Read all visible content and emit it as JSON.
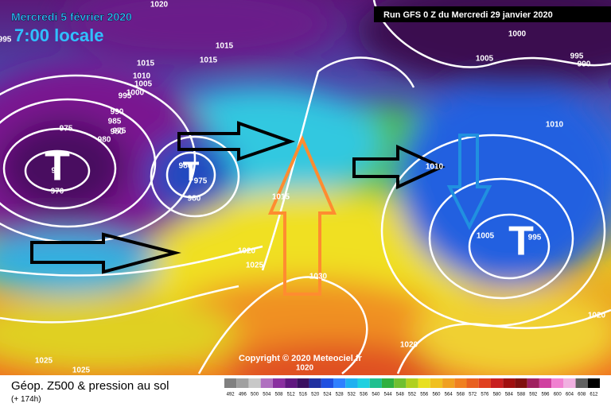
{
  "header": {
    "date": "Mercredi 5 février 2020",
    "time": "7:00 locale",
    "run": "Run GFS 0 Z du Mercredi 29 janvier 2020"
  },
  "map": {
    "low_markers": [
      "T",
      "T",
      "T"
    ],
    "isobar_labels": [
      1020,
      995,
      1015,
      1015,
      1015,
      1010,
      1005,
      1000,
      995,
      990,
      985,
      980,
      975,
      975,
      980,
      97,
      970,
      980,
      975,
      980,
      1015,
      1020,
      1025,
      1030,
      1010,
      1005,
      995,
      1010,
      1005,
      1000,
      995,
      990,
      1020,
      1020,
      1020,
      1025,
      1025
    ]
  },
  "copyright": "Copyright © 2020 Meteociel.fr",
  "footer": {
    "title": "Géop. Z500 & pression au sol",
    "lead": "(+ 174h)"
  },
  "scale": {
    "ticks": [
      492,
      496,
      500,
      504,
      508,
      512,
      516,
      520,
      524,
      528,
      532,
      536,
      540,
      544,
      548,
      552,
      556,
      560,
      564,
      568,
      572,
      576,
      580,
      584,
      588,
      592,
      596,
      600,
      604,
      608,
      612
    ]
  }
}
